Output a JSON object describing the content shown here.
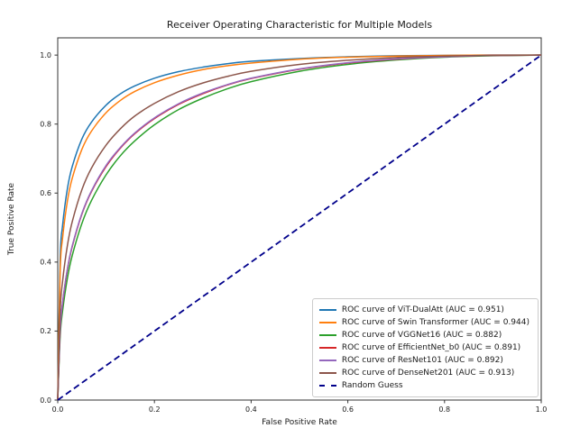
{
  "figure": {
    "title": "Receiver Operating Characteristic for Multiple Models",
    "xlabel": "False Positive Rate",
    "ylabel": "True Positive Rate"
  },
  "chart_data": {
    "type": "line",
    "title": "Receiver Operating Characteristic for Multiple Models",
    "xlabel": "False Positive Rate",
    "ylabel": "True Positive Rate",
    "xlim": [
      0.0,
      1.0
    ],
    "ylim": [
      0.0,
      1.05
    ],
    "xticks": [
      0.0,
      0.2,
      0.4,
      0.6,
      0.8,
      1.0
    ],
    "yticks": [
      0.0,
      0.2,
      0.4,
      0.6,
      0.8,
      1.0
    ],
    "grid": false,
    "legend_position": "lower right",
    "x": [
      0,
      0.005,
      0.01,
      0.02,
      0.03,
      0.05,
      0.07,
      0.1,
      0.13,
      0.16,
      0.2,
      0.25,
      0.3,
      0.35,
      0.4,
      0.5,
      0.6,
      0.7,
      0.8,
      0.9,
      1.0
    ],
    "series": [
      {
        "key": "vit-dualatt",
        "name": "ROC curve of ViT-DualAtt (AUC = 0.951)",
        "auc": 0.951,
        "color": "#1f77b4",
        "style": "solid",
        "values": [
          0,
          0.407,
          0.506,
          0.613,
          0.677,
          0.757,
          0.806,
          0.855,
          0.888,
          0.911,
          0.933,
          0.952,
          0.965,
          0.975,
          0.982,
          0.99,
          0.995,
          0.998,
          0.999,
          1.0,
          1.0
        ]
      },
      {
        "key": "swin-transformer",
        "name": "ROC curve of Swin Transformer (AUC = 0.944)",
        "auc": 0.944,
        "color": "#ff7f0e",
        "style": "solid",
        "values": [
          0,
          0.372,
          0.469,
          0.577,
          0.643,
          0.727,
          0.78,
          0.833,
          0.869,
          0.895,
          0.92,
          0.942,
          0.958,
          0.969,
          0.977,
          0.988,
          0.994,
          0.997,
          0.999,
          1.0,
          1.0
        ]
      },
      {
        "key": "vggnet16",
        "name": "ROC curve of VGGNet16 (AUC = 0.882)",
        "auc": 0.882,
        "color": "#2ca02c",
        "style": "solid",
        "values": [
          0,
          0.184,
          0.258,
          0.353,
          0.419,
          0.512,
          0.579,
          0.653,
          0.709,
          0.752,
          0.798,
          0.842,
          0.875,
          0.902,
          0.923,
          0.953,
          0.973,
          0.986,
          0.994,
          0.998,
          1.0
        ]
      },
      {
        "key": "efficientnet-b0",
        "name": "ROC curve of EfficientNet_b0 (AUC = 0.891)",
        "auc": 0.891,
        "color": "#d62728",
        "style": "solid",
        "values": [
          0,
          0.202,
          0.28,
          0.378,
          0.445,
          0.539,
          0.605,
          0.677,
          0.731,
          0.773,
          0.816,
          0.857,
          0.888,
          0.913,
          0.932,
          0.959,
          0.977,
          0.988,
          0.995,
          0.999,
          1.0
        ]
      },
      {
        "key": "resnet101",
        "name": "ROC curve of ResNet101 (AUC = 0.892)",
        "auc": 0.892,
        "color": "#9467bd",
        "style": "solid",
        "values": [
          0,
          0.204,
          0.282,
          0.38,
          0.447,
          0.541,
          0.607,
          0.68,
          0.733,
          0.775,
          0.818,
          0.859,
          0.89,
          0.914,
          0.933,
          0.96,
          0.978,
          0.989,
          0.995,
          0.999,
          1.0
        ]
      },
      {
        "key": "densenet201",
        "name": "ROC curve of DenseNet201 (AUC = 0.913)",
        "auc": 0.913,
        "color": "#8c564b",
        "style": "solid",
        "values": [
          0,
          0.257,
          0.344,
          0.448,
          0.517,
          0.61,
          0.673,
          0.739,
          0.787,
          0.824,
          0.86,
          0.894,
          0.919,
          0.938,
          0.953,
          0.973,
          0.985,
          0.993,
          0.997,
          0.999,
          1.0
        ]
      },
      {
        "key": "random-guess",
        "name": "Random Guess",
        "color": "#00008b",
        "style": "dashed",
        "values": [
          0,
          0.005,
          0.01,
          0.02,
          0.03,
          0.05,
          0.07,
          0.1,
          0.13,
          0.16,
          0.2,
          0.25,
          0.3,
          0.35,
          0.4,
          0.5,
          0.6,
          0.7,
          0.8,
          0.9,
          1.0
        ]
      }
    ]
  }
}
